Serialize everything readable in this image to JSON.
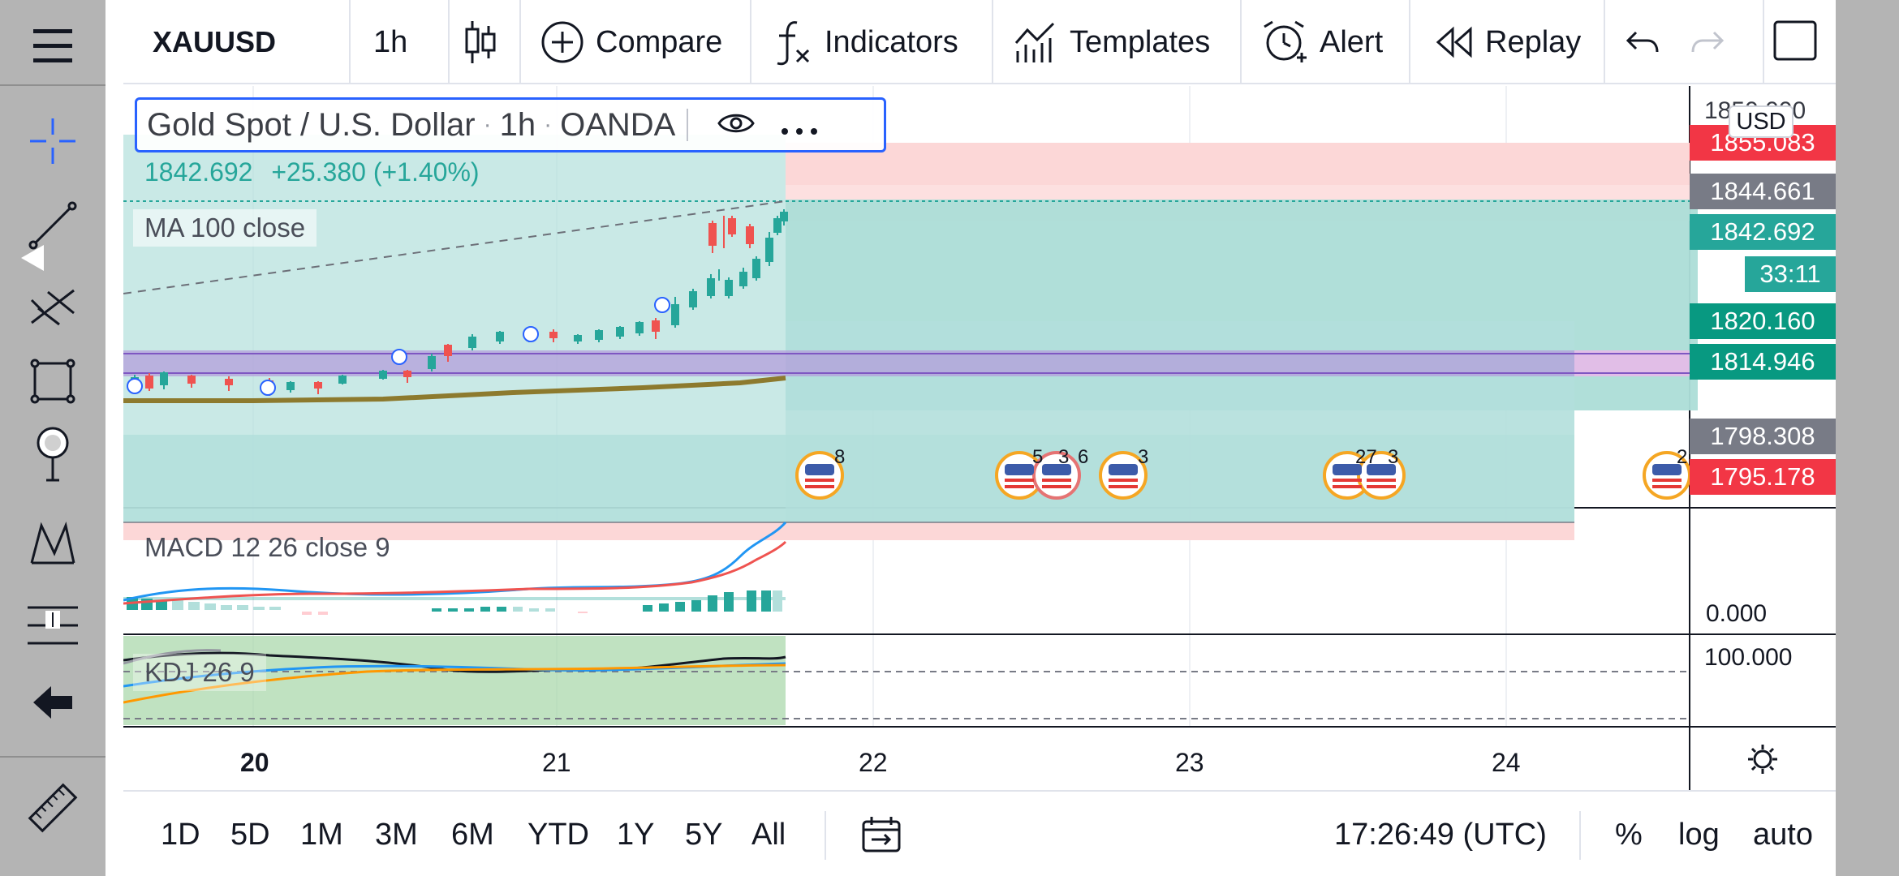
{
  "symbol": "XAUUSD",
  "toolbar": {
    "interval": "1h",
    "compare": "Compare",
    "indicators": "Indicators",
    "templates": "Templates",
    "alert": "Alert",
    "replay": "Replay"
  },
  "legend": {
    "name": "Gold Spot / U.S. Dollar",
    "interval": "1h",
    "exchange": "OANDA",
    "last": "1842.692",
    "change": "+25.380 (+1.40%)"
  },
  "indicators": {
    "ma": "MA 100 close",
    "macd": "MACD 12 26 close 9",
    "kdj": "KDJ 26 9"
  },
  "price_scale": {
    "currency": "USD",
    "top_partial": "1850.000",
    "labels": [
      {
        "value": "1855.083",
        "color": "#f23645"
      },
      {
        "value": "1844.661",
        "color": "#787b86"
      },
      {
        "value": "1842.692",
        "color": "#26a69a"
      },
      {
        "value": "33:11",
        "color": "#26a69a"
      },
      {
        "value": "1820.160",
        "color": "#089981"
      },
      {
        "value": "1814.946",
        "color": "#089981"
      },
      {
        "value": "1798.308",
        "color": "#787b86"
      },
      {
        "value": "1795.178",
        "color": "#f23645"
      }
    ],
    "macd_zero": "0.000",
    "kdj_top": "100.000"
  },
  "events": [
    {
      "count": "8"
    },
    {
      "count": "5"
    },
    {
      "count": "3"
    },
    {
      "count": "6"
    },
    {
      "count": "3"
    },
    {
      "count": "27"
    },
    {
      "count": "3"
    },
    {
      "count": "2"
    }
  ],
  "time_axis": [
    "20",
    "21",
    "22",
    "23",
    "24"
  ],
  "bottom": {
    "ranges": [
      "1D",
      "5D",
      "1M",
      "3M",
      "6M",
      "YTD",
      "1Y",
      "5Y",
      "All"
    ],
    "clock": "17:26:49 (UTC)",
    "percent": "%",
    "log": "log",
    "auto": "auto"
  },
  "colors": {
    "up": "#26a69a",
    "down": "#ef5350",
    "accent": "#2962ff",
    "ma": "#8d7a2e"
  },
  "chart_data": {
    "type": "candlestick",
    "x_labels": [
      "20",
      "21",
      "22",
      "23",
      "24"
    ],
    "y_scale_labels": [
      "1855.083",
      "1844.661",
      "1842.692",
      "1820.160",
      "1814.946",
      "1798.308",
      "1795.178"
    ],
    "last_price": 1842.692
  }
}
